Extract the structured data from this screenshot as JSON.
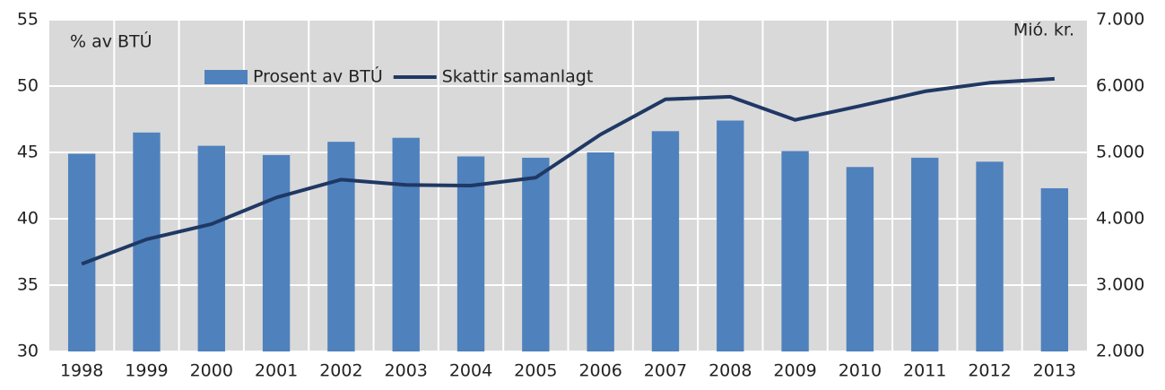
{
  "chart_data": {
    "type": "bar_line",
    "y_label": "% av BTÚ",
    "y2_label": "Mió. kr.",
    "categories": [
      "1998",
      "1999",
      "2000",
      "2001",
      "2002",
      "2003",
      "2004",
      "2005",
      "2006",
      "2007",
      "2008",
      "2009",
      "2010",
      "2011",
      "2012",
      "2013"
    ],
    "series": [
      {
        "name": "Prosent av BTÚ",
        "type": "bar",
        "color": "#4f81bd",
        "values": [
          44.9,
          46.5,
          45.5,
          44.8,
          45.8,
          46.1,
          44.7,
          44.6,
          45.0,
          46.6,
          47.4,
          45.1,
          43.9,
          44.6,
          44.3,
          42.3
        ]
      },
      {
        "name": "Skattir samanlagt",
        "type": "line",
        "axis": "y2",
        "color": "#1f3864",
        "values": [
          3320,
          3690,
          3920,
          4320,
          4590,
          4510,
          4500,
          4620,
          5270,
          5800,
          5840,
          5490,
          5700,
          5920,
          6050,
          6110
        ]
      }
    ],
    "ylim": [
      30,
      55
    ],
    "yticks": [
      30,
      35,
      40,
      45,
      50,
      55
    ],
    "y2lim": [
      2000,
      7000
    ],
    "y2ticks": [
      {
        "value": 2000,
        "label": "2.000"
      },
      {
        "value": 3000,
        "label": "3.000"
      },
      {
        "value": 4000,
        "label": "4.000"
      },
      {
        "value": 5000,
        "label": "5.000"
      },
      {
        "value": 6000,
        "label": "6.000"
      },
      {
        "value": 7000,
        "label": "7.000"
      }
    ],
    "grid": true,
    "legend": "top"
  }
}
